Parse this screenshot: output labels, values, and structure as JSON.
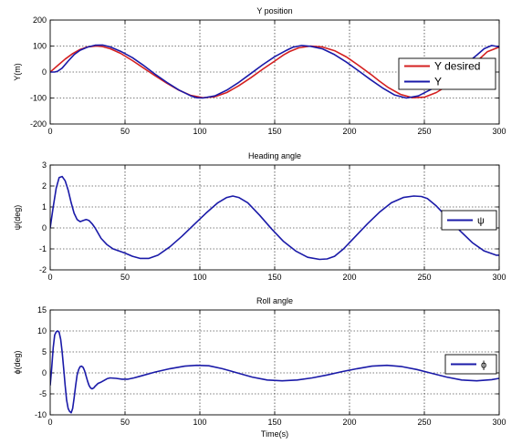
{
  "chart_data": [
    {
      "type": "line",
      "title": "Y position",
      "xlabel": "",
      "ylabel": "Y(m)",
      "xlim": [
        0,
        300
      ],
      "ylim": [
        -200,
        200
      ],
      "xticks": [
        "0",
        "50",
        "100",
        "150",
        "200",
        "250",
        "300"
      ],
      "yticks": [
        "-200",
        "-100",
        "0",
        "100",
        "200"
      ],
      "grid": true,
      "legend_position": "right",
      "series": [
        {
          "name": "Y desired",
          "color": "#d42020",
          "x": [
            0,
            5,
            10,
            15,
            20,
            25,
            31,
            35,
            40,
            47,
            55,
            62,
            70,
            78,
            86,
            94,
            102,
            110,
            118,
            126,
            134,
            142,
            150,
            156,
            160,
            166,
            174,
            182,
            190,
            198,
            206,
            214,
            220,
            226,
            234,
            242,
            250,
            258,
            266,
            274,
            281,
            286,
            292,
            300
          ],
          "y": [
            0,
            25,
            50,
            71,
            87,
            97,
            100,
            98,
            90,
            72,
            44,
            17,
            -14,
            -43,
            -70,
            -90,
            -99,
            -95,
            -79,
            -53,
            -22,
            11,
            42,
            66,
            79,
            93,
            100,
            96,
            82,
            58,
            26,
            -8,
            -35,
            -60,
            -86,
            -99,
            -97,
            -79,
            -51,
            -15,
            20,
            46,
            78,
            96
          ]
        },
        {
          "name": "Y",
          "color": "#1a1aa8",
          "x": [
            0,
            3,
            5,
            8,
            12,
            16,
            20,
            25,
            30,
            35,
            40,
            47,
            55,
            62,
            70,
            78,
            86,
            94,
            98,
            102,
            110,
            118,
            126,
            134,
            142,
            150,
            158,
            162,
            168,
            174,
            182,
            190,
            198,
            206,
            214,
            222,
            230,
            238,
            246,
            254,
            262,
            270,
            278,
            285,
            290,
            295,
            300
          ],
          "y": [
            0,
            0,
            3,
            15,
            42,
            67,
            84,
            96,
            103,
            104,
            97,
            80,
            55,
            27,
            -8,
            -40,
            -69,
            -92,
            -99,
            -100,
            -92,
            -70,
            -40,
            -6,
            28,
            59,
            84,
            95,
            102,
            99,
            89,
            67,
            38,
            5,
            -29,
            -61,
            -88,
            -100,
            -92,
            -68,
            -38,
            -4,
            32,
            65,
            90,
            102,
            97
          ]
        }
      ]
    },
    {
      "type": "line",
      "title": "Heading angle",
      "xlabel": "",
      "ylabel": "ψ(deg)",
      "xlim": [
        0,
        300
      ],
      "ylim": [
        -2,
        3
      ],
      "xticks": [
        "0",
        "50",
        "100",
        "150",
        "200",
        "250",
        "300"
      ],
      "yticks": [
        "-2",
        "-1",
        "0",
        "1",
        "2",
        "3"
      ],
      "grid": true,
      "legend_position": "right",
      "series": [
        {
          "name": "ψ",
          "color": "#1a1aa8",
          "x": [
            0,
            2,
            4,
            6,
            8,
            10,
            12,
            14,
            16,
            18,
            20,
            22,
            24,
            26,
            28,
            30,
            34,
            38,
            42,
            46,
            50,
            55,
            60,
            66,
            72,
            80,
            88,
            96,
            104,
            112,
            118,
            122,
            126,
            132,
            140,
            148,
            156,
            164,
            172,
            180,
            185,
            190,
            196,
            204,
            212,
            220,
            228,
            236,
            243,
            248,
            252,
            258,
            266,
            274,
            282,
            290,
            298,
            300
          ],
          "y": [
            0,
            1.0,
            1.9,
            2.4,
            2.45,
            2.25,
            1.8,
            1.2,
            0.7,
            0.4,
            0.3,
            0.35,
            0.4,
            0.35,
            0.2,
            0.0,
            -0.5,
            -0.8,
            -1.0,
            -1.1,
            -1.2,
            -1.35,
            -1.45,
            -1.45,
            -1.3,
            -0.9,
            -0.4,
            0.15,
            0.7,
            1.2,
            1.45,
            1.52,
            1.45,
            1.2,
            0.6,
            -0.05,
            -0.65,
            -1.1,
            -1.4,
            -1.5,
            -1.48,
            -1.35,
            -1.0,
            -0.4,
            0.2,
            0.75,
            1.2,
            1.45,
            1.52,
            1.5,
            1.4,
            1.05,
            0.45,
            -0.15,
            -0.7,
            -1.1,
            -1.3,
            -1.3
          ]
        }
      ]
    },
    {
      "type": "line",
      "title": "Roll angle",
      "xlabel": "Time(s)",
      "ylabel": "ϕ(deg)",
      "xlim": [
        0,
        300
      ],
      "ylim": [
        -10,
        15
      ],
      "xticks": [
        "0",
        "50",
        "100",
        "150",
        "200",
        "250",
        "300"
      ],
      "yticks": [
        "-10",
        "-5",
        "0",
        "5",
        "10",
        "15"
      ],
      "grid": true,
      "legend_position": "right",
      "series": [
        {
          "name": "ϕ",
          "color": "#1a1aa8",
          "x": [
            0,
            1,
            2,
            3,
            4,
            5,
            6,
            7,
            8,
            9,
            10,
            11,
            12,
            13,
            14,
            15,
            16,
            17,
            18,
            19,
            20,
            21,
            22,
            23,
            24,
            25,
            26,
            27,
            28,
            29,
            30,
            32,
            34,
            36,
            38,
            40,
            44,
            48,
            52,
            56,
            60,
            70,
            80,
            90,
            98,
            106,
            115,
            125,
            135,
            145,
            155,
            165,
            175,
            185,
            195,
            205,
            215,
            225,
            235,
            245,
            255,
            265,
            275,
            285,
            295,
            300
          ],
          "y": [
            -3,
            1,
            6,
            9,
            9.8,
            10,
            9.7,
            8,
            5,
            1,
            -3,
            -6.5,
            -8.5,
            -9.2,
            -9.5,
            -8.5,
            -6,
            -3,
            -0.5,
            0.8,
            1.5,
            1.6,
            1.3,
            0.5,
            -0.8,
            -2,
            -3,
            -3.6,
            -3.8,
            -3.6,
            -3.2,
            -2.5,
            -2.2,
            -1.8,
            -1.4,
            -1.2,
            -1.3,
            -1.5,
            -1.5,
            -1.2,
            -0.8,
            0.2,
            1.0,
            1.6,
            1.8,
            1.7,
            1.0,
            0.0,
            -1.0,
            -1.7,
            -1.9,
            -1.7,
            -1.2,
            -0.5,
            0.3,
            1.0,
            1.6,
            1.8,
            1.5,
            0.8,
            -0.1,
            -1.0,
            -1.7,
            -1.9,
            -1.6,
            -1.3
          ]
        }
      ]
    }
  ]
}
